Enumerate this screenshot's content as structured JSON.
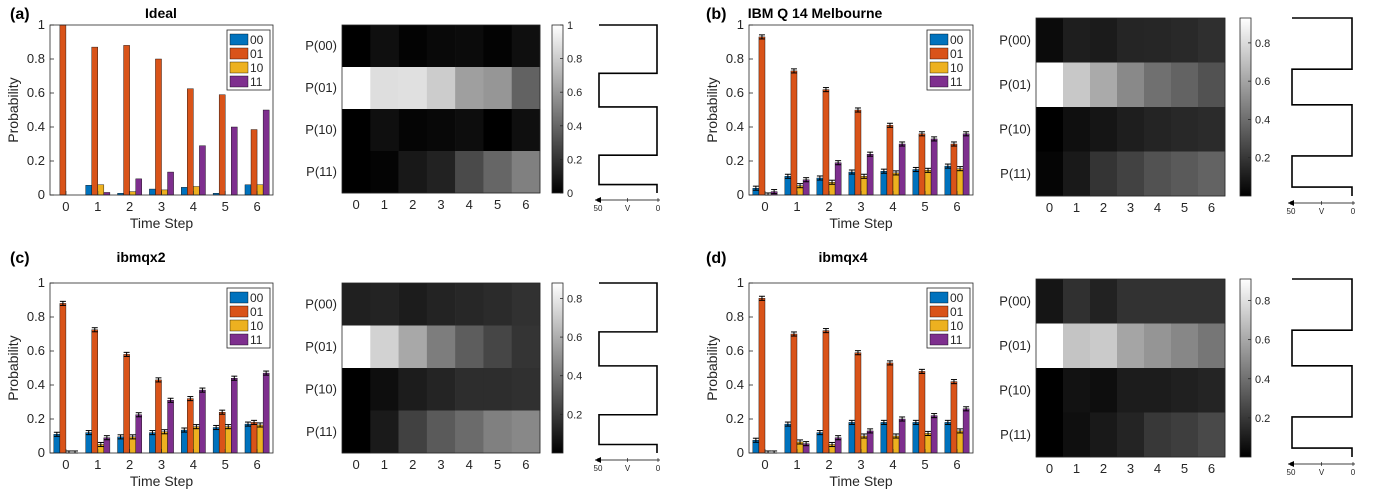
{
  "colors": {
    "series": [
      "#0072BD",
      "#D95319",
      "#EDB120",
      "#7E2F8E"
    ],
    "axis": "#262626",
    "errorbar": "#000000"
  },
  "chart_data": [
    {
      "type": "bar",
      "panel_label": "(a)",
      "title": "Ideal",
      "xlabel": "Time Step",
      "ylabel": "Probability",
      "ylim": [
        0,
        1
      ],
      "categories": [
        "0",
        "1",
        "2",
        "3",
        "4",
        "5",
        "6"
      ],
      "yticks": [
        "0",
        "0.2",
        "0.4",
        "0.6",
        "0.8",
        "1"
      ],
      "legend": [
        "00",
        "01",
        "10",
        "11"
      ],
      "legend_position": "top-right",
      "series": [
        {
          "name": "00",
          "values": [
            0.0,
            0.057,
            0.01,
            0.035,
            0.045,
            0.01,
            0.06
          ]
        },
        {
          "name": "01",
          "values": [
            1.0,
            0.87,
            0.88,
            0.8,
            0.625,
            0.59,
            0.385
          ]
        },
        {
          "name": "10",
          "values": [
            0.0,
            0.06,
            0.02,
            0.03,
            0.05,
            0.0,
            0.06
          ]
        },
        {
          "name": "11",
          "values": [
            0.0,
            0.015,
            0.095,
            0.135,
            0.29,
            0.4,
            0.5
          ]
        }
      ],
      "errors": null
    },
    {
      "type": "heatmap",
      "rows": [
        "P(00)",
        "P(01)",
        "P(10)",
        "P(11)"
      ],
      "columns": [
        "0",
        "1",
        "2",
        "3",
        "4",
        "5",
        "6"
      ],
      "colorbar_ticks": [
        "0",
        "0.2",
        "0.4",
        "0.6",
        "0.8",
        "1"
      ],
      "colorbar_range": [
        0,
        1
      ],
      "values": [
        [
          0.0,
          0.057,
          0.01,
          0.035,
          0.045,
          0.01,
          0.06
        ],
        [
          1.0,
          0.87,
          0.88,
          0.8,
          0.625,
          0.59,
          0.385
        ],
        [
          0.0,
          0.06,
          0.02,
          0.03,
          0.05,
          0.0,
          0.06
        ],
        [
          0.0,
          0.015,
          0.095,
          0.135,
          0.29,
          0.4,
          0.5
        ]
      ],
      "potential_axis": [
        "50",
        "V",
        "0"
      ]
    },
    {
      "type": "bar",
      "panel_label": "(b)",
      "title": "IBM Q 14 Melbourne",
      "xlabel": "Time Step",
      "ylabel": "Probability",
      "ylim": [
        0,
        1
      ],
      "categories": [
        "0",
        "1",
        "2",
        "3",
        "4",
        "5",
        "6"
      ],
      "yticks": [
        "0",
        "0.2",
        "0.4",
        "0.6",
        "0.8",
        "1"
      ],
      "legend": [
        "00",
        "01",
        "10",
        "11"
      ],
      "legend_position": "top-right",
      "series": [
        {
          "name": "00",
          "values": [
            0.04,
            0.11,
            0.1,
            0.135,
            0.14,
            0.15,
            0.17
          ]
        },
        {
          "name": "01",
          "values": [
            0.93,
            0.73,
            0.62,
            0.5,
            0.41,
            0.36,
            0.3
          ]
        },
        {
          "name": "10",
          "values": [
            0.0,
            0.055,
            0.075,
            0.11,
            0.13,
            0.145,
            0.155
          ]
        },
        {
          "name": "11",
          "values": [
            0.02,
            0.09,
            0.19,
            0.24,
            0.3,
            0.33,
            0.36
          ]
        }
      ],
      "errors": 0.012
    },
    {
      "type": "heatmap",
      "rows": [
        "P(00)",
        "P(01)",
        "P(10)",
        "P(11)"
      ],
      "columns": [
        "0",
        "1",
        "2",
        "3",
        "4",
        "5",
        "6"
      ],
      "colorbar_ticks": [
        "0.2",
        "0.4",
        "0.6",
        "0.8"
      ],
      "colorbar_range": [
        0,
        0.93
      ],
      "values": [
        [
          0.04,
          0.11,
          0.1,
          0.135,
          0.14,
          0.15,
          0.17
        ],
        [
          0.93,
          0.73,
          0.62,
          0.5,
          0.41,
          0.36,
          0.3
        ],
        [
          0.0,
          0.055,
          0.075,
          0.11,
          0.13,
          0.145,
          0.155
        ],
        [
          0.02,
          0.09,
          0.19,
          0.24,
          0.3,
          0.33,
          0.36
        ]
      ],
      "potential_axis": [
        "50",
        "V",
        "0"
      ]
    },
    {
      "type": "bar",
      "panel_label": "(c)",
      "title": "ibmqx2",
      "xlabel": "Time Step",
      "ylabel": "Probability",
      "ylim": [
        0,
        1
      ],
      "categories": [
        "0",
        "1",
        "2",
        "3",
        "4",
        "5",
        "6"
      ],
      "yticks": [
        "0",
        "0.2",
        "0.4",
        "0.6",
        "0.8",
        "1"
      ],
      "legend": [
        "00",
        "01",
        "10",
        "11"
      ],
      "legend_position": "top-right",
      "series": [
        {
          "name": "00",
          "values": [
            0.11,
            0.12,
            0.095,
            0.12,
            0.135,
            0.15,
            0.17
          ]
        },
        {
          "name": "01",
          "values": [
            0.88,
            0.725,
            0.58,
            0.43,
            0.32,
            0.24,
            0.18
          ]
        },
        {
          "name": "10",
          "values": [
            0.0,
            0.05,
            0.095,
            0.125,
            0.155,
            0.155,
            0.165
          ]
        },
        {
          "name": "11",
          "values": [
            0.0,
            0.09,
            0.225,
            0.31,
            0.37,
            0.44,
            0.47
          ]
        }
      ],
      "errors": 0.012
    },
    {
      "type": "heatmap",
      "rows": [
        "P(00)",
        "P(01)",
        "P(10)",
        "P(11)"
      ],
      "columns": [
        "0",
        "1",
        "2",
        "3",
        "4",
        "5",
        "6"
      ],
      "colorbar_ticks": [
        "0.2",
        "0.4",
        "0.6",
        "0.8"
      ],
      "colorbar_range": [
        0,
        0.88
      ],
      "values": [
        [
          0.11,
          0.12,
          0.095,
          0.12,
          0.135,
          0.15,
          0.17
        ],
        [
          0.88,
          0.725,
          0.58,
          0.43,
          0.32,
          0.24,
          0.18
        ],
        [
          0.0,
          0.05,
          0.095,
          0.125,
          0.155,
          0.155,
          0.165
        ],
        [
          0.0,
          0.09,
          0.225,
          0.31,
          0.37,
          0.44,
          0.47
        ]
      ],
      "potential_axis": [
        "50",
        "V",
        "0"
      ]
    },
    {
      "type": "bar",
      "panel_label": "(d)",
      "title": "ibmqx4",
      "xlabel": "Time Step",
      "ylabel": "Probability",
      "ylim": [
        0,
        1
      ],
      "categories": [
        "0",
        "1",
        "2",
        "3",
        "4",
        "5",
        "6"
      ],
      "yticks": [
        "0",
        "0.2",
        "0.4",
        "0.6",
        "0.8",
        "1"
      ],
      "legend": [
        "00",
        "01",
        "10",
        "11"
      ],
      "legend_position": "top-right",
      "series": [
        {
          "name": "00",
          "values": [
            0.075,
            0.17,
            0.12,
            0.18,
            0.18,
            0.18,
            0.18
          ]
        },
        {
          "name": "01",
          "values": [
            0.91,
            0.7,
            0.72,
            0.59,
            0.53,
            0.48,
            0.42
          ]
        },
        {
          "name": "10",
          "values": [
            0.0,
            0.065,
            0.05,
            0.1,
            0.1,
            0.115,
            0.13
          ]
        },
        {
          "name": "11",
          "values": [
            0.0,
            0.055,
            0.09,
            0.13,
            0.2,
            0.22,
            0.26
          ]
        }
      ],
      "errors": 0.012
    },
    {
      "type": "heatmap",
      "rows": [
        "P(00)",
        "P(01)",
        "P(10)",
        "P(11)"
      ],
      "columns": [
        "0",
        "1",
        "2",
        "3",
        "4",
        "5",
        "6"
      ],
      "colorbar_ticks": [
        "0.2",
        "0.4",
        "0.6",
        "0.8"
      ],
      "colorbar_range": [
        0,
        0.91
      ],
      "values": [
        [
          0.075,
          0.17,
          0.12,
          0.18,
          0.18,
          0.18,
          0.18
        ],
        [
          0.91,
          0.7,
          0.72,
          0.59,
          0.53,
          0.48,
          0.42
        ],
        [
          0.0,
          0.065,
          0.05,
          0.1,
          0.1,
          0.115,
          0.13
        ],
        [
          0.0,
          0.055,
          0.09,
          0.13,
          0.2,
          0.22,
          0.26
        ]
      ],
      "potential_axis": [
        "50",
        "V",
        "0"
      ]
    }
  ]
}
